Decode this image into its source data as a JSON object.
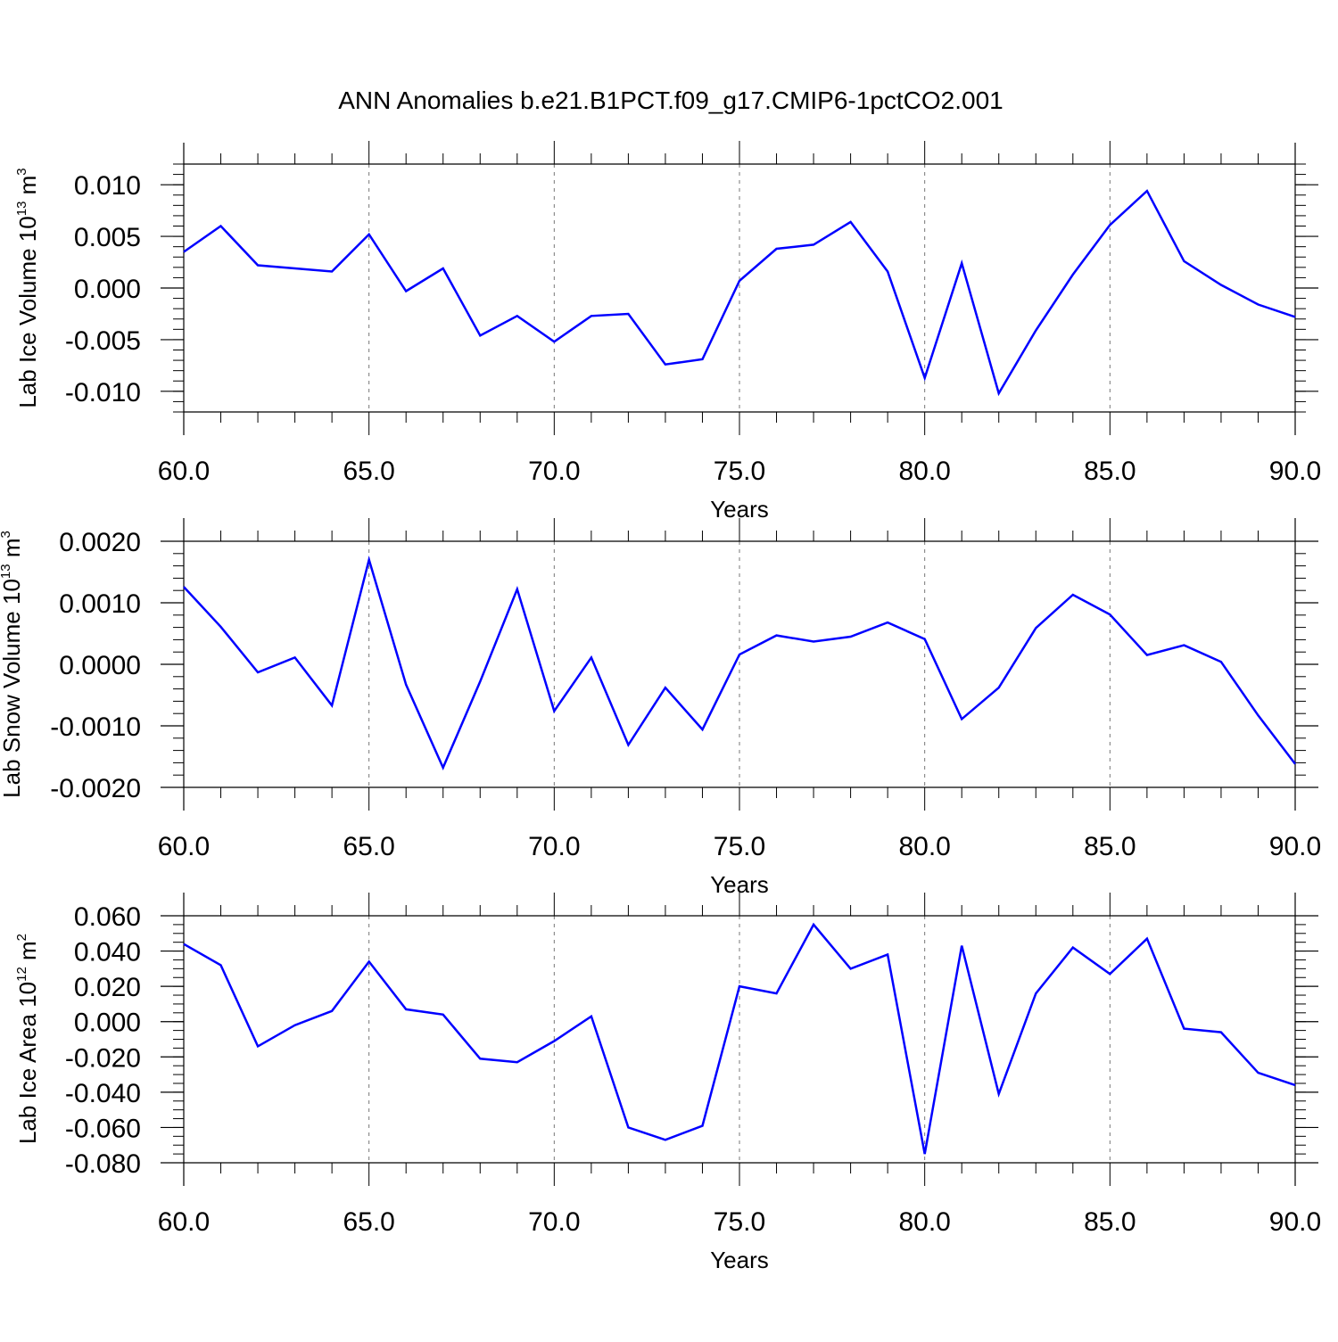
{
  "title": "ANN Anomalies b.e21.B1PCT.f09_g17.CMIP6-1pctCO2.001",
  "line_color": "#0000ff",
  "chart_data": [
    {
      "type": "line",
      "title": "ANN Anomalies b.e21.B1PCT.f09_g17.CMIP6-1pctCO2.001",
      "xlabel": "Years",
      "ylabel": {
        "main": "Lab Ice Volume 10",
        "exp": "13",
        "unit": " m",
        "unit_exp": "3"
      },
      "xlim": [
        60,
        90
      ],
      "ylim": [
        -0.012,
        0.012
      ],
      "grid": "vertical dashed",
      "x_ticks": [
        "60.0",
        "65.0",
        "70.0",
        "75.0",
        "80.0",
        "85.0",
        "90.0"
      ],
      "y_ticks": [
        {
          "v": 0.01,
          "label": "0.010"
        },
        {
          "v": 0.005,
          "label": "0.005"
        },
        {
          "v": 0.0,
          "label": "0.000"
        },
        {
          "v": -0.005,
          "label": "-0.005"
        },
        {
          "v": -0.01,
          "label": "-0.010"
        }
      ],
      "y_minor_step": 0.001,
      "x": [
        60,
        61,
        62,
        63,
        64,
        65,
        66,
        67,
        68,
        69,
        70,
        71,
        72,
        73,
        74,
        75,
        76,
        77,
        78,
        79,
        80,
        81,
        82,
        83,
        84,
        85,
        86,
        87,
        88,
        89,
        90
      ],
      "values": [
        0.0035,
        0.006,
        0.0022,
        0.0019,
        0.0016,
        0.0052,
        -0.0003,
        0.0019,
        -0.0046,
        -0.0027,
        -0.0052,
        -0.0027,
        -0.0025,
        -0.0074,
        -0.0069,
        0.0007,
        0.0038,
        0.0042,
        0.0064,
        0.0016,
        -0.0087,
        0.0024,
        -0.0102,
        -0.0041,
        0.0013,
        0.0061,
        0.0094,
        0.0026,
        0.0003,
        -0.0016,
        -0.0028
      ]
    },
    {
      "type": "line",
      "xlabel": "Years",
      "ylabel": {
        "main": "Lab Snow Volume 10",
        "exp": "13",
        "unit": " m",
        "unit_exp": "3"
      },
      "xlim": [
        60,
        90
      ],
      "ylim": [
        -0.002,
        0.002
      ],
      "grid": "vertical dashed",
      "x_ticks": [
        "60.0",
        "65.0",
        "70.0",
        "75.0",
        "80.0",
        "85.0",
        "90.0"
      ],
      "y_ticks": [
        {
          "v": 0.002,
          "label": "0.0020"
        },
        {
          "v": 0.001,
          "label": "0.0010"
        },
        {
          "v": 0.0,
          "label": "0.0000"
        },
        {
          "v": -0.001,
          "label": "-0.0010"
        },
        {
          "v": -0.002,
          "label": "-0.0020"
        }
      ],
      "y_minor_step": 0.0002,
      "x": [
        60,
        61,
        62,
        63,
        64,
        65,
        66,
        67,
        68,
        69,
        70,
        71,
        72,
        73,
        74,
        75,
        76,
        77,
        78,
        79,
        80,
        81,
        82,
        83,
        84,
        85,
        86,
        87,
        88,
        89,
        90
      ],
      "values": [
        0.00126,
        0.00061,
        -0.00013,
        0.00011,
        -0.00067,
        0.0017,
        -0.00033,
        -0.00168,
        -0.00028,
        0.00122,
        -0.00076,
        0.00011,
        -0.00131,
        -0.00038,
        -0.00106,
        0.00016,
        0.00047,
        0.00037,
        0.00045,
        0.00068,
        0.00041,
        -0.00089,
        -0.00038,
        0.00059,
        0.00113,
        0.00081,
        0.00015,
        0.00031,
        4e-05,
        -0.00083,
        -0.00162
      ]
    },
    {
      "type": "line",
      "xlabel": "Years",
      "ylabel": {
        "main": "Lab Ice Area 10",
        "exp": "12",
        "unit": " m",
        "unit_exp": "2"
      },
      "xlim": [
        60,
        90
      ],
      "ylim": [
        -0.08,
        0.06
      ],
      "grid": "vertical dashed",
      "x_ticks": [
        "60.0",
        "65.0",
        "70.0",
        "75.0",
        "80.0",
        "85.0",
        "90.0"
      ],
      "y_ticks": [
        {
          "v": 0.06,
          "label": "0.060"
        },
        {
          "v": 0.04,
          "label": "0.040"
        },
        {
          "v": 0.02,
          "label": "0.020"
        },
        {
          "v": 0.0,
          "label": "0.000"
        },
        {
          "v": -0.02,
          "label": "-0.020"
        },
        {
          "v": -0.04,
          "label": "-0.040"
        },
        {
          "v": -0.06,
          "label": "-0.060"
        },
        {
          "v": -0.08,
          "label": "-0.080"
        }
      ],
      "y_minor_step": 0.005,
      "x": [
        60,
        61,
        62,
        63,
        64,
        65,
        66,
        67,
        68,
        69,
        70,
        71,
        72,
        73,
        74,
        75,
        76,
        77,
        78,
        79,
        80,
        81,
        82,
        83,
        84,
        85,
        86,
        87,
        88,
        89,
        90
      ],
      "values": [
        0.044,
        0.032,
        -0.014,
        -0.002,
        0.006,
        0.034,
        0.007,
        0.004,
        -0.021,
        -0.023,
        -0.011,
        0.003,
        -0.06,
        -0.067,
        -0.059,
        0.02,
        0.016,
        0.055,
        0.03,
        0.038,
        -0.075,
        0.043,
        -0.041,
        0.016,
        0.042,
        0.027,
        0.047,
        -0.004,
        -0.006,
        -0.029,
        -0.036
      ]
    }
  ]
}
